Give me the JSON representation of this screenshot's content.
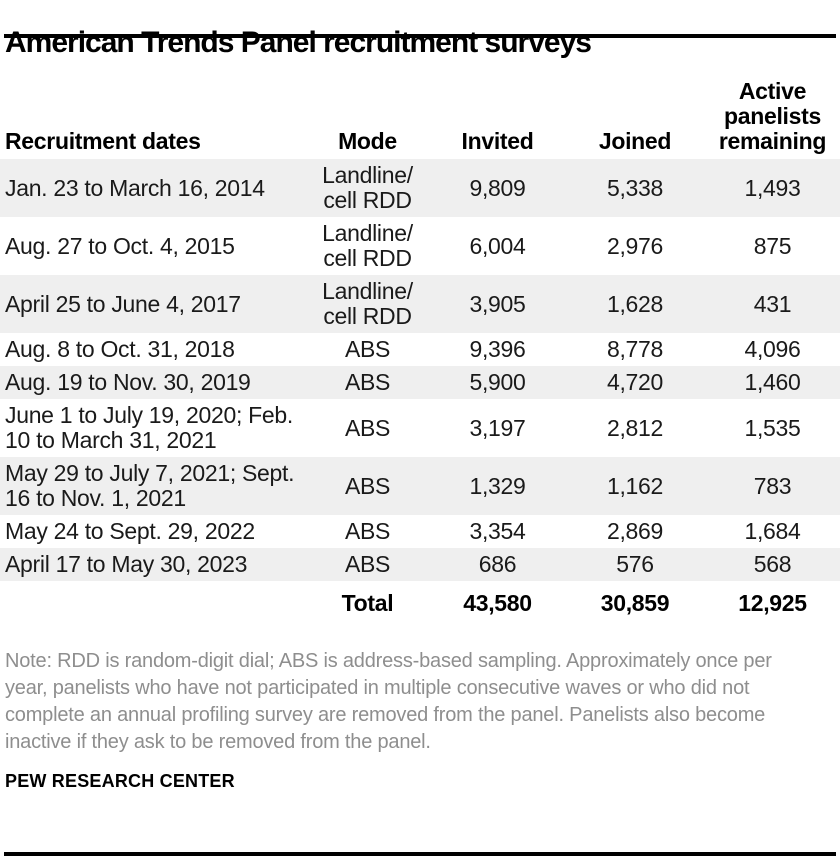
{
  "colors": {
    "rule": "#000000",
    "row_stripe": "#efefef",
    "cell_text": "#1a1a1a",
    "note_text": "#8e8e8e"
  },
  "title": "American Trends Panel recruitment surveys",
  "table": {
    "columns": [
      "Recruitment dates",
      "Mode",
      "Invited",
      "Joined",
      "Active panelists remaining"
    ],
    "rows": [
      {
        "dates": "Jan. 23 to March 16, 2014",
        "mode": "Landline/ cell RDD",
        "invited": "9,809",
        "joined": "5,338",
        "remaining": "1,493"
      },
      {
        "dates": "Aug. 27 to Oct. 4, 2015",
        "mode": "Landline/ cell RDD",
        "invited": "6,004",
        "joined": "2,976",
        "remaining": "875"
      },
      {
        "dates": "April 25 to June 4, 2017",
        "mode": "Landline/ cell RDD",
        "invited": "3,905",
        "joined": "1,628",
        "remaining": "431"
      },
      {
        "dates": "Aug. 8 to Oct. 31, 2018",
        "mode": "ABS",
        "invited": "9,396",
        "joined": "8,778",
        "remaining": "4,096"
      },
      {
        "dates": "Aug. 19 to Nov. 30, 2019",
        "mode": "ABS",
        "invited": "5,900",
        "joined": "4,720",
        "remaining": "1,460"
      },
      {
        "dates": "June 1 to July 19, 2020; Feb. 10 to March 31, 2021",
        "mode": "ABS",
        "invited": "3,197",
        "joined": "2,812",
        "remaining": "1,535"
      },
      {
        "dates": "May 29 to July 7, 2021; Sept. 16 to Nov. 1, 2021",
        "mode": "ABS",
        "invited": "1,329",
        "joined": "1,162",
        "remaining": "783"
      },
      {
        "dates": "May 24 to Sept. 29, 2022",
        "mode": "ABS",
        "invited": "3,354",
        "joined": "2,869",
        "remaining": "1,684"
      },
      {
        "dates": "April 17 to May 30, 2023",
        "mode": "ABS",
        "invited": "686",
        "joined": "576",
        "remaining": "568"
      }
    ],
    "total": {
      "label": "Total",
      "invited": "43,580",
      "joined": "30,859",
      "remaining": "12,925"
    }
  },
  "note": "Note: RDD is random-digit dial; ABS is address-based sampling. Approximately once per year, panelists who have not participated in multiple consecutive waves or who did not complete an annual profiling survey are removed from the panel. Panelists also become inactive if they ask to be removed from the panel.",
  "source": "PEW RESEARCH CENTER",
  "chart_data": {
    "type": "table",
    "title": "American Trends Panel recruitment surveys",
    "columns": [
      "Recruitment dates",
      "Mode",
      "Invited",
      "Joined",
      "Active panelists remaining"
    ],
    "rows": [
      [
        "Jan. 23 to March 16, 2014",
        "Landline/cell RDD",
        9809,
        5338,
        1493
      ],
      [
        "Aug. 27 to Oct. 4, 2015",
        "Landline/cell RDD",
        6004,
        2976,
        875
      ],
      [
        "April 25 to June 4, 2017",
        "Landline/cell RDD",
        3905,
        1628,
        431
      ],
      [
        "Aug. 8 to Oct. 31, 2018",
        "ABS",
        9396,
        8778,
        4096
      ],
      [
        "Aug. 19 to Nov. 30, 2019",
        "ABS",
        5900,
        4720,
        1460
      ],
      [
        "June 1 to July 19, 2020; Feb. 10 to March 31, 2021",
        "ABS",
        3197,
        2812,
        1535
      ],
      [
        "May 29 to July 7, 2021; Sept. 16 to Nov. 1, 2021",
        "ABS",
        1329,
        1162,
        783
      ],
      [
        "May 24 to Sept. 29, 2022",
        "ABS",
        3354,
        2869,
        1684
      ],
      [
        "April 17 to May 30, 2023",
        "ABS",
        686,
        576,
        568
      ]
    ],
    "total": [
      "Total",
      43580,
      30859,
      12925
    ],
    "layout": {
      "striped_rows": "odd",
      "stripe_color": "#efefef",
      "numeric_alignment": "center"
    }
  }
}
